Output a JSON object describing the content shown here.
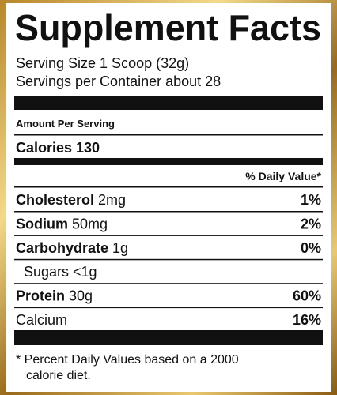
{
  "title": "Supplement Facts",
  "serving_size": "Serving Size 1 Scoop (32g)",
  "servings_per_container": "Servings per Container about 28",
  "amount_per_serving": "Amount Per Serving",
  "calories": "Calories 130",
  "daily_value_header": "% Daily Value*",
  "rows": [
    {
      "name": "Cholesterol",
      "amount": "2mg",
      "dv": "1%",
      "bold": true
    },
    {
      "name": "Sodium",
      "amount": "50mg",
      "dv": "2%",
      "bold": true
    },
    {
      "name": "Carbohydrate",
      "amount": "1g",
      "dv": "0%",
      "bold": true
    },
    {
      "name": "Sugars <1g",
      "indent": true
    },
    {
      "name": "Protein",
      "amount": "30g",
      "dv": "60%",
      "bold": true
    },
    {
      "name": "Calcium",
      "dv": "16%"
    }
  ],
  "footnote": [
    "* Percent Daily Values based on a 2000",
    "calorie diet."
  ]
}
